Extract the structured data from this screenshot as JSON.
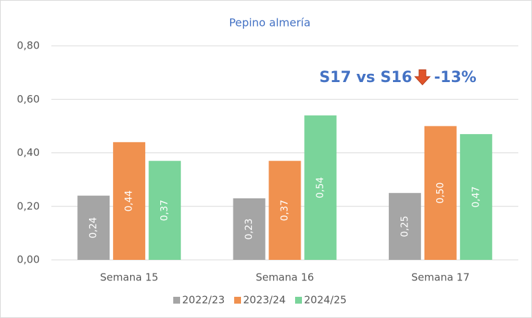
{
  "chart_data": {
    "type": "bar",
    "title": "Pepino almería",
    "annotations": [
      "S17 vs S16",
      "-13%"
    ],
    "categories": [
      "Semana 15",
      "Semana 16",
      "Semana 17"
    ],
    "series": [
      {
        "name": "2022/23",
        "color": "#a5a5a5",
        "values": [
          0.24,
          0.23,
          0.25
        ],
        "value_labels": [
          "0,24",
          "0,23",
          "0,25"
        ]
      },
      {
        "name": "2023/24",
        "color": "#f0914f",
        "values": [
          0.44,
          0.37,
          0.5
        ],
        "value_labels": [
          "0,44",
          "0,37",
          "0,50"
        ]
      },
      {
        "name": "2024/25",
        "color": "#7ad49a",
        "values": [
          0.37,
          0.54,
          0.47
        ],
        "value_labels": [
          "0,37",
          "0,54",
          "0,47"
        ]
      }
    ],
    "ylim": [
      0,
      0.8
    ],
    "yticks": [
      {
        "value": 0,
        "label": "0,00"
      },
      {
        "value": 0.2,
        "label": "0,20"
      },
      {
        "value": 0.4,
        "label": "0,40"
      },
      {
        "value": 0.6,
        "label": "0,60"
      },
      {
        "value": 0.8,
        "label": "0,80"
      }
    ],
    "grid": true,
    "legend": "bottom"
  }
}
